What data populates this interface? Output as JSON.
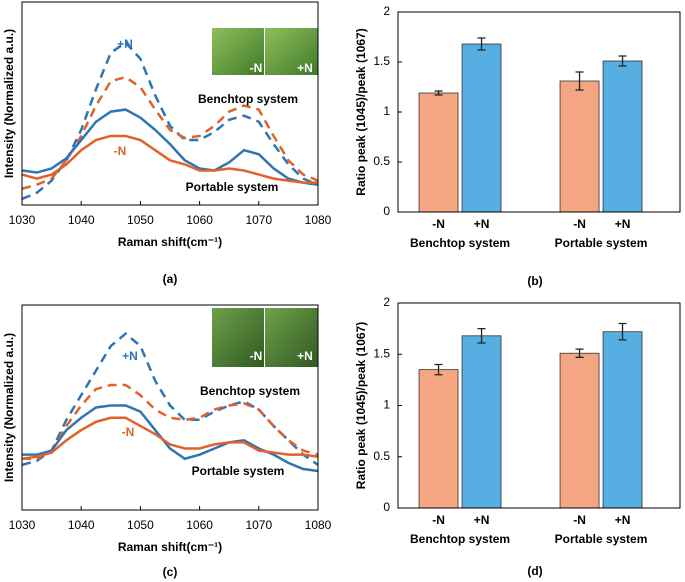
{
  "chart_data": [
    {
      "type": "line",
      "label": "(a)",
      "xlabel": "Raman shift(cm⁻¹)",
      "ylabel": "Intensity (Normalized a.u.)",
      "xlim": [
        1030,
        1080
      ],
      "xticks": [
        1030,
        1040,
        1050,
        1060,
        1070,
        1080
      ],
      "ylim": [
        0,
        1
      ],
      "x": [
        1030,
        1032.5,
        1035,
        1037.5,
        1040,
        1042.5,
        1045,
        1047.5,
        1050,
        1052.5,
        1055,
        1057.5,
        1060,
        1062.5,
        1065,
        1067.5,
        1070,
        1072.5,
        1075,
        1077.5,
        1080
      ],
      "series": [
        {
          "color": "#2e75b6",
          "dash": true,
          "values": [
            0.03,
            0.06,
            0.12,
            0.22,
            0.37,
            0.57,
            0.75,
            0.8,
            0.72,
            0.54,
            0.39,
            0.32,
            0.32,
            0.36,
            0.42,
            0.44,
            0.41,
            0.3,
            0.2,
            0.13,
            0.1
          ]
        },
        {
          "color": "#e0622a",
          "dash": true,
          "values": [
            0.08,
            0.1,
            0.13,
            0.22,
            0.34,
            0.49,
            0.61,
            0.63,
            0.58,
            0.47,
            0.37,
            0.33,
            0.34,
            0.39,
            0.46,
            0.49,
            0.47,
            0.34,
            0.22,
            0.15,
            0.12
          ]
        },
        {
          "color": "#2e75b6",
          "dash": false,
          "values": [
            0.17,
            0.16,
            0.18,
            0.23,
            0.32,
            0.41,
            0.46,
            0.47,
            0.43,
            0.37,
            0.3,
            0.22,
            0.18,
            0.17,
            0.21,
            0.27,
            0.25,
            0.18,
            0.13,
            0.11,
            0.1
          ]
        },
        {
          "color": "#e0622a",
          "dash": false,
          "values": [
            0.15,
            0.13,
            0.15,
            0.2,
            0.27,
            0.32,
            0.34,
            0.34,
            0.32,
            0.27,
            0.22,
            0.2,
            0.17,
            0.17,
            0.18,
            0.17,
            0.15,
            0.13,
            0.12,
            0.11,
            0.11
          ]
        }
      ],
      "annotations": [
        {
          "text": "+N",
          "color": "#2e75b6"
        },
        {
          "text": "Benchtop system",
          "color": "#000000"
        },
        {
          "text": "-N",
          "color": "#e0622a"
        },
        {
          "text": "Portable system",
          "color": "#000000"
        }
      ],
      "photo_labels": [
        "-N",
        "+N"
      ]
    },
    {
      "type": "bar",
      "label": "(b)",
      "ylabel": "Ratio peak (1045)/peak (1067)",
      "ylim": [
        0,
        2
      ],
      "yticks": [
        0,
        0.5,
        1,
        1.5,
        2
      ],
      "categories": [
        "Benchtop system",
        "Portable system"
      ],
      "series": [
        {
          "name": "-N",
          "color": "#f4a582",
          "values": [
            1.19,
            1.31
          ],
          "errors": [
            0.02,
            0.09
          ]
        },
        {
          "name": "+N",
          "color": "#56aee2",
          "values": [
            1.68,
            1.51
          ],
          "errors": [
            0.06,
            0.05
          ]
        }
      ]
    },
    {
      "type": "line",
      "label": "(c)",
      "xlabel": "Raman shift(cm⁻¹)",
      "ylabel": "Intensity (Normalized a.u.)",
      "xlim": [
        1030,
        1080
      ],
      "xticks": [
        1030,
        1040,
        1050,
        1060,
        1070,
        1080
      ],
      "ylim": [
        0,
        1
      ],
      "x": [
        1030,
        1032.5,
        1035,
        1037.5,
        1040,
        1042.5,
        1045,
        1047.5,
        1050,
        1052.5,
        1055,
        1057.5,
        1060,
        1062.5,
        1065,
        1067.5,
        1070,
        1072.5,
        1075,
        1077.5,
        1080
      ],
      "series": [
        {
          "color": "#2e75b6",
          "dash": true,
          "values": [
            0.22,
            0.24,
            0.29,
            0.44,
            0.56,
            0.68,
            0.8,
            0.86,
            0.8,
            0.63,
            0.51,
            0.44,
            0.44,
            0.48,
            0.51,
            0.53,
            0.49,
            0.41,
            0.34,
            0.27,
            0.22
          ]
        },
        {
          "color": "#e0622a",
          "dash": true,
          "values": [
            0.25,
            0.25,
            0.29,
            0.41,
            0.51,
            0.59,
            0.61,
            0.61,
            0.56,
            0.49,
            0.45,
            0.44,
            0.45,
            0.49,
            0.51,
            0.52,
            0.49,
            0.41,
            0.34,
            0.29,
            0.27
          ]
        },
        {
          "color": "#2e75b6",
          "dash": false,
          "values": [
            0.27,
            0.27,
            0.29,
            0.39,
            0.45,
            0.5,
            0.51,
            0.51,
            0.48,
            0.39,
            0.3,
            0.25,
            0.27,
            0.3,
            0.33,
            0.34,
            0.3,
            0.27,
            0.23,
            0.2,
            0.19
          ]
        },
        {
          "color": "#e0622a",
          "dash": false,
          "values": [
            0.25,
            0.26,
            0.28,
            0.34,
            0.39,
            0.43,
            0.45,
            0.45,
            0.41,
            0.37,
            0.32,
            0.3,
            0.3,
            0.32,
            0.33,
            0.33,
            0.29,
            0.28,
            0.27,
            0.27,
            0.26
          ]
        }
      ],
      "annotations": [
        {
          "text": "+N",
          "color": "#2e75b6"
        },
        {
          "text": "Benchtop system",
          "color": "#000000"
        },
        {
          "text": "-N",
          "color": "#e0622a"
        },
        {
          "text": "Portable system",
          "color": "#000000"
        }
      ],
      "photo_labels": [
        "-N",
        "+N"
      ]
    },
    {
      "type": "bar",
      "label": "(d)",
      "ylabel": "Ratio peak (1045)/peak (1067)",
      "ylim": [
        0,
        2
      ],
      "yticks": [
        0,
        0.5,
        1,
        1.5,
        2
      ],
      "categories": [
        "Benchtop system",
        "Portable system"
      ],
      "series": [
        {
          "name": "-N",
          "color": "#f4a582",
          "values": [
            1.35,
            1.51
          ],
          "errors": [
            0.05,
            0.04
          ]
        },
        {
          "name": "+N",
          "color": "#56aee2",
          "values": [
            1.68,
            1.72
          ],
          "errors": [
            0.07,
            0.08
          ]
        }
      ]
    }
  ]
}
